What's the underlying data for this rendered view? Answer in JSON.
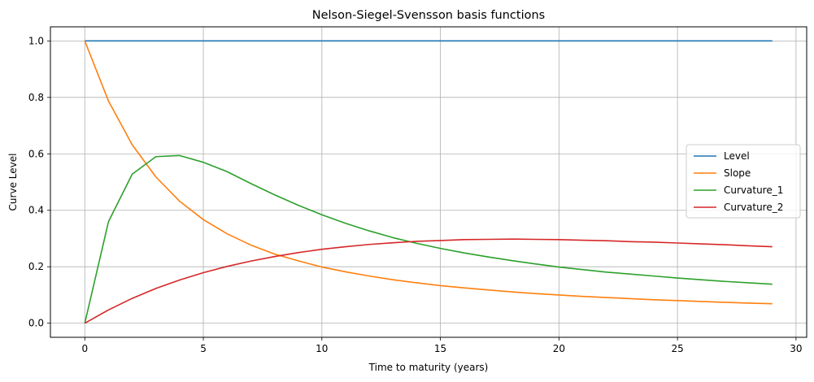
{
  "chart_data": {
    "type": "line",
    "title": "Nelson-Siegel-Svensson basis functions",
    "xlabel": "Time to maturity (years)",
    "ylabel": "Curve Level",
    "xlim": [
      -1.45,
      30.45
    ],
    "ylim": [
      -0.05,
      1.05
    ],
    "xticks": [
      0,
      5,
      10,
      15,
      20,
      25,
      30
    ],
    "yticks": [
      0.0,
      0.2,
      0.4,
      0.6,
      0.8,
      1.0
    ],
    "xtick_labels": [
      "0",
      "5",
      "10",
      "15",
      "20",
      "25",
      "30"
    ],
    "ytick_labels": [
      "0.0",
      "0.2",
      "0.4",
      "0.6",
      "0.8",
      "1.0"
    ],
    "grid": true,
    "legend_position": "center-right",
    "x": [
      0,
      1,
      2,
      3,
      4,
      5,
      6,
      7,
      8,
      9,
      10,
      11,
      12,
      13,
      14,
      15,
      16,
      17,
      18,
      19,
      20,
      21,
      22,
      23,
      24,
      25,
      26,
      27,
      28,
      29
    ],
    "series": [
      {
        "name": "Level",
        "color": "#1f77b4",
        "values": [
          1,
          1,
          1,
          1,
          1,
          1,
          1,
          1,
          1,
          1,
          1,
          1,
          1,
          1,
          1,
          1,
          1,
          1,
          1,
          1,
          1,
          1,
          1,
          1,
          1,
          1,
          1,
          1,
          1,
          1
        ]
      },
      {
        "name": "Slope",
        "color": "#ff7f0e",
        "values": [
          1.0,
          0.787,
          0.632,
          0.518,
          0.432,
          0.367,
          0.317,
          0.277,
          0.245,
          0.221,
          0.199,
          0.182,
          0.167,
          0.154,
          0.143,
          0.133,
          0.125,
          0.118,
          0.111,
          0.105,
          0.1,
          0.095,
          0.091,
          0.087,
          0.083,
          0.08,
          0.077,
          0.074,
          0.071,
          0.069
        ]
      },
      {
        "name": "Curvature_1",
        "color": "#2ca02c",
        "values": [
          0.0,
          0.36,
          0.528,
          0.59,
          0.594,
          0.57,
          0.537,
          0.495,
          0.455,
          0.418,
          0.384,
          0.354,
          0.327,
          0.303,
          0.283,
          0.265,
          0.249,
          0.235,
          0.222,
          0.21,
          0.199,
          0.19,
          0.181,
          0.174,
          0.167,
          0.16,
          0.154,
          0.148,
          0.143,
          0.138
        ]
      },
      {
        "name": "Curvature_2",
        "color": "#d62728",
        "values": [
          0.0,
          0.047,
          0.088,
          0.123,
          0.153,
          0.179,
          0.201,
          0.22,
          0.236,
          0.25,
          0.262,
          0.271,
          0.279,
          0.285,
          0.29,
          0.293,
          0.296,
          0.297,
          0.298,
          0.297,
          0.296,
          0.294,
          0.292,
          0.289,
          0.287,
          0.284,
          0.281,
          0.278,
          0.274,
          0.271
        ]
      }
    ]
  }
}
